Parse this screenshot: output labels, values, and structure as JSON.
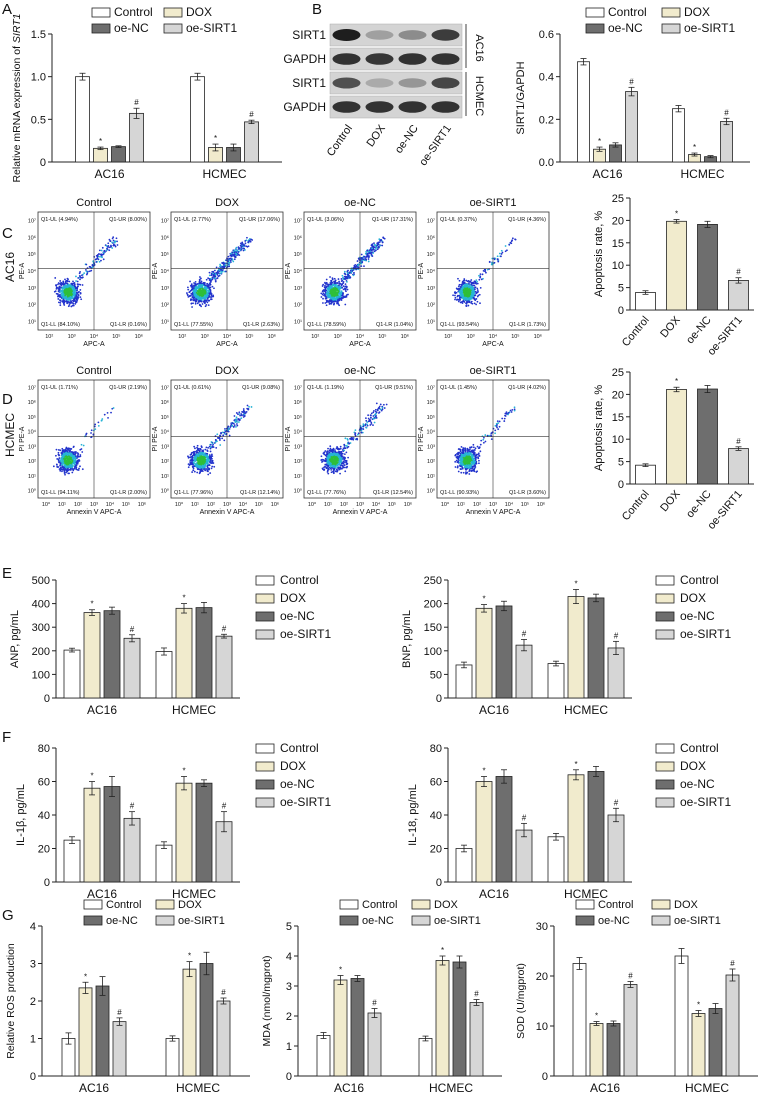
{
  "colors": {
    "Control": "#ffffff",
    "DOX": "#f1ebcd",
    "oe-NC": "#6e6e6e",
    "oe-SIRT1": "#d6d6d6",
    "axis": "#222222"
  },
  "panel_letters": [
    "A",
    "B",
    "C",
    "D",
    "E",
    "F",
    "G"
  ],
  "legend_labels": [
    "Control",
    "DOX",
    "oe-NC",
    "oe-SIRT1"
  ],
  "blot": {
    "rows": [
      "SIRT1",
      "GAPDH",
      "SIRT1",
      "GAPDH"
    ],
    "cell_lines": [
      "AC16",
      "HCMEC"
    ],
    "lanes": [
      "Control",
      "DOX",
      "oe-NC",
      "oe-SIRT1"
    ],
    "intensity": [
      [
        1.0,
        0.35,
        0.45,
        0.85
      ],
      [
        0.9,
        0.88,
        0.9,
        0.9
      ],
      [
        0.75,
        0.3,
        0.4,
        0.8
      ],
      [
        0.9,
        0.9,
        0.9,
        0.9
      ]
    ]
  },
  "flow": {
    "rows": [
      {
        "cell_line": "AC16",
        "ylabel": "PE-A",
        "xlabel": "APC-A",
        "xticks": [
          "10²",
          "10³",
          "10⁴",
          "10⁵",
          "10⁶"
        ],
        "yticks": [
          "10⁷",
          "10⁶",
          "10⁵",
          "10⁴",
          "10³",
          "10²",
          "10¹"
        ],
        "plots": [
          {
            "title": "Control",
            "ul": "Q1-UL (4.94%)",
            "ur": "Q1-UR (8.00%)",
            "ll": "Q1-LL (84.10%)",
            "lr": "Q1-LR (0.16%)"
          },
          {
            "title": "DOX",
            "ul": "Q1-UL (2.77%)",
            "ur": "Q1-UR (17.06%)",
            "ll": "Q1-LL (77.55%)",
            "lr": "Q1-LR (2.63%)"
          },
          {
            "title": "oe-NC",
            "ul": "Q1-UL (3.06%)",
            "ur": "Q1-UR (17.31%)",
            "ll": "Q1-LL (78.59%)",
            "lr": "Q1-LR (1.04%)"
          },
          {
            "title": "oe-SIRT1",
            "ul": "Q1-UL (0.37%)",
            "ur": "Q1-UR (4.36%)",
            "ll": "Q1-LL (93.54%)",
            "lr": "Q1-LR (1.73%)"
          }
        ]
      },
      {
        "cell_line": "HCMEC",
        "ylabel": "PI PE-A",
        "xlabel": "Annexin V APC-A",
        "xticks": [
          "10⁰",
          "10¹",
          "10²",
          "10³",
          "10⁴",
          "10⁵",
          "10⁶"
        ],
        "yticks": [
          "10⁷",
          "10⁶",
          "10⁵",
          "10⁴",
          "10³",
          "10²",
          "10¹",
          "10⁰"
        ],
        "plots": [
          {
            "title": "Control",
            "ul": "Q1-UL (1.71%)",
            "ur": "Q1-UR (2.19%)",
            "ll": "Q1-LL (94.11%)",
            "lr": "Q1-LR (2.00%)"
          },
          {
            "title": "DOX",
            "ul": "Q1-UL (0.61%)",
            "ur": "Q1-UR (9.08%)",
            "ll": "Q1-LL (77.96%)",
            "lr": "Q1-LR (12.14%)"
          },
          {
            "title": "oe-NC",
            "ul": "Q1-UL (1.19%)",
            "ur": "Q1-UR (9.51%)",
            "ll": "Q1-LL (77.76%)",
            "lr": "Q1-LR (12.54%)"
          },
          {
            "title": "oe-SIRT1",
            "ul": "Q1-UL (1.45%)",
            "ur": "Q1-UR (4.02%)",
            "ll": "Q1-LL (90.93%)",
            "lr": "Q1-LR (3.60%)"
          }
        ]
      }
    ]
  },
  "chart_data": [
    {
      "id": "A",
      "type": "bar",
      "title": "",
      "ylabel_prefix": "Relative mRNA expression of ",
      "ylabel_italic": "SIRT1",
      "categories": [
        "AC16",
        "HCMEC"
      ],
      "ylim": [
        0,
        1.5
      ],
      "yticks": [
        "0",
        "0.5",
        "1.0",
        "1.5"
      ],
      "ytick_values": [
        0,
        0.5,
        1.0,
        1.5
      ],
      "series": [
        {
          "name": "Control",
          "values": [
            1.0,
            1.0
          ],
          "errors": [
            0.04,
            0.04
          ],
          "marks": [
            "",
            ""
          ]
        },
        {
          "name": "DOX",
          "values": [
            0.16,
            0.17
          ],
          "errors": [
            0.015,
            0.04
          ],
          "marks": [
            "*",
            "*"
          ]
        },
        {
          "name": "oe-NC",
          "values": [
            0.18,
            0.17
          ],
          "errors": [
            0.01,
            0.04
          ],
          "marks": [
            "",
            ""
          ]
        },
        {
          "name": "oe-SIRT1",
          "values": [
            0.57,
            0.47
          ],
          "errors": [
            0.06,
            0.02
          ],
          "marks": [
            "#",
            "#"
          ]
        }
      ]
    },
    {
      "id": "B",
      "type": "bar",
      "ylabel": "SIRT1/GAPDH",
      "categories": [
        "AC16",
        "HCMEC"
      ],
      "ylim": [
        0,
        0.6
      ],
      "yticks": [
        "0.0",
        "0.2",
        "0.4",
        "0.6"
      ],
      "ytick_values": [
        0,
        0.2,
        0.4,
        0.6
      ],
      "series": [
        {
          "name": "Control",
          "values": [
            0.47,
            0.25
          ],
          "errors": [
            0.015,
            0.015
          ],
          "marks": [
            "",
            ""
          ]
        },
        {
          "name": "DOX",
          "values": [
            0.06,
            0.035
          ],
          "errors": [
            0.01,
            0.007
          ],
          "marks": [
            "*",
            "*"
          ]
        },
        {
          "name": "oe-NC",
          "values": [
            0.08,
            0.025
          ],
          "errors": [
            0.01,
            0.005
          ],
          "marks": [
            "",
            ""
          ]
        },
        {
          "name": "oe-SIRT1",
          "values": [
            0.33,
            0.19
          ],
          "errors": [
            0.02,
            0.015
          ],
          "marks": [
            "#",
            "#"
          ]
        }
      ]
    },
    {
      "id": "C",
      "type": "bar",
      "ylabel": "Apoptosis rate, %",
      "categories": [
        "Control",
        "DOX",
        "oe-NC",
        "oe-SIRT1"
      ],
      "ylim": [
        0,
        25
      ],
      "yticks": [
        "0",
        "5",
        "10",
        "15",
        "20",
        "25"
      ],
      "ytick_values": [
        0,
        5,
        10,
        15,
        20,
        25
      ],
      "values": [
        3.9,
        19.8,
        19.1,
        6.6
      ],
      "errors": [
        0.4,
        0.4,
        0.7,
        0.6
      ],
      "marks": [
        "",
        "*",
        "",
        "#"
      ]
    },
    {
      "id": "D",
      "type": "bar",
      "ylabel": "Apoptosis rate, %",
      "categories": [
        "Control",
        "DOX",
        "oe-NC",
        "oe-SIRT1"
      ],
      "ylim": [
        0,
        25
      ],
      "yticks": [
        "0",
        "5",
        "10",
        "15",
        "20",
        "25"
      ],
      "ytick_values": [
        0,
        5,
        10,
        15,
        20,
        25
      ],
      "values": [
        4.2,
        21.1,
        21.2,
        7.9
      ],
      "errors": [
        0.3,
        0.5,
        0.8,
        0.4
      ],
      "marks": [
        "",
        "*",
        "",
        "#"
      ]
    },
    {
      "id": "E-ANP",
      "type": "bar",
      "ylabel": "ANP, pg/mL",
      "categories": [
        "AC16",
        "HCMEC"
      ],
      "ylim": [
        0,
        500
      ],
      "yticks": [
        "0",
        "100",
        "200",
        "300",
        "400",
        "500"
      ],
      "ytick_values": [
        0,
        100,
        200,
        300,
        400,
        500
      ],
      "series": [
        {
          "name": "Control",
          "values": [
            203,
            197
          ],
          "errors": [
            8,
            15
          ],
          "marks": [
            "",
            ""
          ]
        },
        {
          "name": "DOX",
          "values": [
            362,
            380
          ],
          "errors": [
            12,
            20
          ],
          "marks": [
            "*",
            "*"
          ]
        },
        {
          "name": "oe-NC",
          "values": [
            370,
            383
          ],
          "errors": [
            15,
            22
          ],
          "marks": [
            "",
            ""
          ]
        },
        {
          "name": "oe-SIRT1",
          "values": [
            253,
            262
          ],
          "errors": [
            15,
            8
          ],
          "marks": [
            "#",
            "#"
          ]
        }
      ]
    },
    {
      "id": "E-BNP",
      "type": "bar",
      "ylabel": "BNP, pg/mL",
      "categories": [
        "AC16",
        "HCMEC"
      ],
      "ylim": [
        0,
        250
      ],
      "yticks": [
        "0",
        "50",
        "100",
        "150",
        "200",
        "250"
      ],
      "ytick_values": [
        0,
        50,
        100,
        150,
        200,
        250
      ],
      "series": [
        {
          "name": "Control",
          "values": [
            70,
            73
          ],
          "errors": [
            6,
            5
          ],
          "marks": [
            "",
            ""
          ]
        },
        {
          "name": "DOX",
          "values": [
            190,
            215
          ],
          "errors": [
            8,
            15
          ],
          "marks": [
            "*",
            "*"
          ]
        },
        {
          "name": "oe-NC",
          "values": [
            195,
            212
          ],
          "errors": [
            10,
            8
          ],
          "marks": [
            "",
            ""
          ]
        },
        {
          "name": "oe-SIRT1",
          "values": [
            112,
            106
          ],
          "errors": [
            12,
            14
          ],
          "marks": [
            "#",
            "#"
          ]
        }
      ]
    },
    {
      "id": "F-IL1b",
      "type": "bar",
      "ylabel": "IL-1β, pg/mL",
      "categories": [
        "AC16",
        "HCMEC"
      ],
      "ylim": [
        0,
        80
      ],
      "yticks": [
        "0",
        "20",
        "40",
        "60",
        "80"
      ],
      "ytick_values": [
        0,
        20,
        40,
        60,
        80
      ],
      "series": [
        {
          "name": "Control",
          "values": [
            25,
            22
          ],
          "errors": [
            2,
            2
          ],
          "marks": [
            "",
            ""
          ]
        },
        {
          "name": "DOX",
          "values": [
            56,
            59
          ],
          "errors": [
            4,
            4
          ],
          "marks": [
            "*",
            "*"
          ]
        },
        {
          "name": "oe-NC",
          "values": [
            57,
            59
          ],
          "errors": [
            6,
            2
          ],
          "marks": [
            "",
            ""
          ]
        },
        {
          "name": "oe-SIRT1",
          "values": [
            38,
            36
          ],
          "errors": [
            4,
            6
          ],
          "marks": [
            "#",
            "#"
          ]
        }
      ]
    },
    {
      "id": "F-IL18",
      "type": "bar",
      "ylabel": "IL-18, pg/mL",
      "categories": [
        "AC16",
        "HCMEC"
      ],
      "ylim": [
        0,
        80
      ],
      "yticks": [
        "0",
        "20",
        "40",
        "60",
        "80"
      ],
      "ytick_values": [
        0,
        20,
        40,
        60,
        80
      ],
      "series": [
        {
          "name": "Control",
          "values": [
            20,
            27
          ],
          "errors": [
            2,
            2
          ],
          "marks": [
            "",
            ""
          ]
        },
        {
          "name": "DOX",
          "values": [
            60,
            64
          ],
          "errors": [
            3,
            3
          ],
          "marks": [
            "*",
            "*"
          ]
        },
        {
          "name": "oe-NC",
          "values": [
            63,
            66
          ],
          "errors": [
            4,
            3
          ],
          "marks": [
            "",
            ""
          ]
        },
        {
          "name": "oe-SIRT1",
          "values": [
            31,
            40
          ],
          "errors": [
            4,
            4
          ],
          "marks": [
            "#",
            "#"
          ]
        }
      ]
    },
    {
      "id": "G-ROS",
      "type": "bar",
      "ylabel": "Relative ROS production",
      "categories": [
        "AC16",
        "HCMEC"
      ],
      "ylim": [
        0,
        4
      ],
      "yticks": [
        "0",
        "1",
        "2",
        "3",
        "4"
      ],
      "ytick_values": [
        0,
        1,
        2,
        3,
        4
      ],
      "series": [
        {
          "name": "Control",
          "values": [
            1.0,
            1.0
          ],
          "errors": [
            0.15,
            0.07
          ],
          "marks": [
            "",
            ""
          ]
        },
        {
          "name": "DOX",
          "values": [
            2.35,
            2.85
          ],
          "errors": [
            0.15,
            0.2
          ],
          "marks": [
            "*",
            "*"
          ]
        },
        {
          "name": "oe-NC",
          "values": [
            2.4,
            3.0
          ],
          "errors": [
            0.25,
            0.3
          ],
          "marks": [
            "",
            ""
          ]
        },
        {
          "name": "oe-SIRT1",
          "values": [
            1.45,
            2.0
          ],
          "errors": [
            0.1,
            0.08
          ],
          "marks": [
            "#",
            "#"
          ]
        }
      ]
    },
    {
      "id": "G-MDA",
      "type": "bar",
      "ylabel": "MDA (nmol/mgprot)",
      "categories": [
        "AC16",
        "HCMEC"
      ],
      "ylim": [
        0,
        5
      ],
      "yticks": [
        "0",
        "1",
        "2",
        "3",
        "4",
        "5"
      ],
      "ytick_values": [
        0,
        1,
        2,
        3,
        4,
        5
      ],
      "series": [
        {
          "name": "Control",
          "values": [
            1.35,
            1.25
          ],
          "errors": [
            0.1,
            0.08
          ],
          "marks": [
            "",
            ""
          ]
        },
        {
          "name": "DOX",
          "values": [
            3.2,
            3.85
          ],
          "errors": [
            0.15,
            0.15
          ],
          "marks": [
            "*",
            "*"
          ]
        },
        {
          "name": "oe-NC",
          "values": [
            3.25,
            3.8
          ],
          "errors": [
            0.1,
            0.2
          ],
          "marks": [
            "",
            ""
          ]
        },
        {
          "name": "oe-SIRT1",
          "values": [
            2.1,
            2.45
          ],
          "errors": [
            0.15,
            0.1
          ],
          "marks": [
            "#",
            "#"
          ]
        }
      ]
    },
    {
      "id": "G-SOD",
      "type": "bar",
      "ylabel": "SOD (U/mgprot)",
      "categories": [
        "AC16",
        "HCMEC"
      ],
      "ylim": [
        0,
        30
      ],
      "yticks": [
        "0",
        "10",
        "20",
        "30"
      ],
      "ytick_values": [
        0,
        10,
        20,
        30
      ],
      "series": [
        {
          "name": "Control",
          "values": [
            22.5,
            24
          ],
          "errors": [
            1.2,
            1.5
          ],
          "marks": [
            "",
            ""
          ]
        },
        {
          "name": "DOX",
          "values": [
            10.5,
            12.5
          ],
          "errors": [
            0.4,
            0.6
          ],
          "marks": [
            "*",
            "*"
          ]
        },
        {
          "name": "oe-NC",
          "values": [
            10.5,
            13.5
          ],
          "errors": [
            0.5,
            1.0
          ],
          "marks": [
            "",
            ""
          ]
        },
        {
          "name": "oe-SIRT1",
          "values": [
            18.3,
            20.2
          ],
          "errors": [
            0.6,
            1.2
          ],
          "marks": [
            "#",
            "#"
          ]
        }
      ]
    }
  ]
}
